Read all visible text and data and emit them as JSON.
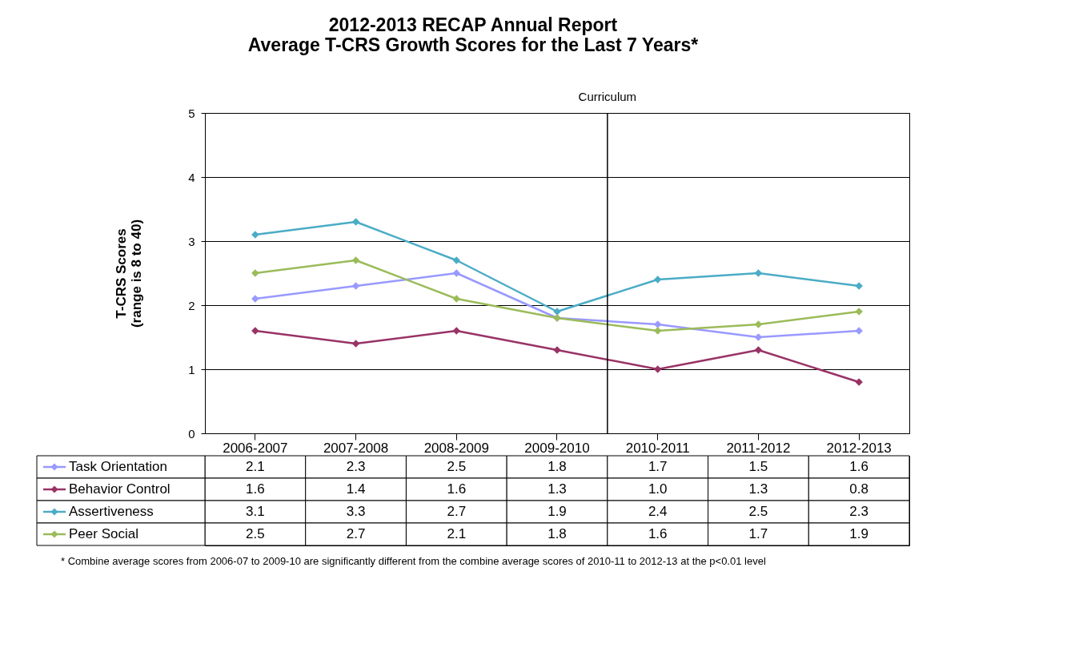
{
  "chart_data": {
    "type": "line",
    "title": [
      "2012-2013 RECAP Annual Report",
      "Average T-CRS  Growth Scores for the Last  7 Years*"
    ],
    "ylabel": "T-CRS Scores\n(range is 8 to 40)",
    "categories": [
      "2006-2007",
      "2007-2008",
      "2008-2009",
      "2009-2010",
      "2010-2011",
      "2011-2012",
      "2012-2013"
    ],
    "series": [
      {
        "name": "Task Orientation",
        "color": "#9999ff",
        "values": [
          2.1,
          2.3,
          2.5,
          1.8,
          1.7,
          1.5,
          1.6
        ],
        "value_labels": [
          "2.1",
          "2.3",
          "2.5",
          "1.8",
          "1.7",
          "1.5",
          "1.6"
        ]
      },
      {
        "name": "Behavior Control",
        "color": "#993366",
        "values": [
          1.6,
          1.4,
          1.6,
          1.3,
          1.0,
          1.3,
          0.8
        ],
        "value_labels": [
          "1.6",
          "1.4",
          "1.6",
          "1.3",
          "1.0",
          "1.3",
          "0.8"
        ]
      },
      {
        "name": "Assertiveness",
        "color": "#4bacc6",
        "values": [
          3.1,
          3.3,
          2.7,
          1.9,
          2.4,
          2.5,
          2.3
        ],
        "value_labels": [
          "3.1",
          "3.3",
          "2.7",
          "1.9",
          "2.4",
          "2.5",
          "2.3"
        ]
      },
      {
        "name": "Peer Social",
        "color": "#9bbb59",
        "values": [
          2.5,
          2.7,
          2.1,
          1.8,
          1.6,
          1.7,
          1.9
        ],
        "value_labels": [
          "2.5",
          "2.7",
          "2.1",
          "1.8",
          "1.6",
          "1.7",
          "1.9"
        ]
      }
    ],
    "ylim": [
      0,
      5
    ],
    "yticks": [
      0,
      1,
      2,
      3,
      4,
      5
    ],
    "grid": "y",
    "marker": "diamond",
    "line_style": "solid",
    "legend": "bottom left",
    "ref_lines": [
      {
        "axis": "x",
        "value": "2010-2011",
        "label": "Curriculum"
      }
    ],
    "annotations": [
      "* Combine average scores  from 2006-07 to 2009-10 are significantly different from the combine average scores of 2010-11 to 2012-13 at the p<0.01 level"
    ]
  }
}
